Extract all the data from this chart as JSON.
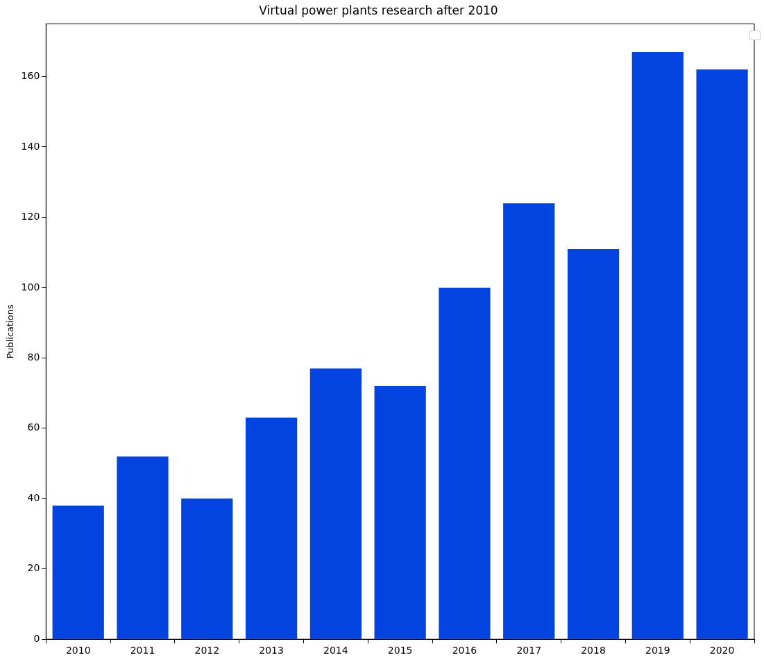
{
  "chart_data": {
    "type": "bar",
    "title": "Virtual power plants research after 2010",
    "ylabel": "Publications",
    "categories": [
      "2010",
      "2011",
      "2012",
      "2013",
      "2014",
      "2015",
      "2016",
      "2017",
      "2018",
      "2019",
      "2020"
    ],
    "values": [
      38,
      52,
      40,
      63,
      77,
      72,
      100,
      124,
      111,
      167,
      162
    ],
    "color": "#0343df",
    "ylim": [
      0,
      175
    ],
    "yticks": [
      0,
      20,
      40,
      60,
      80,
      100,
      120,
      140,
      160
    ],
    "grid": false
  }
}
